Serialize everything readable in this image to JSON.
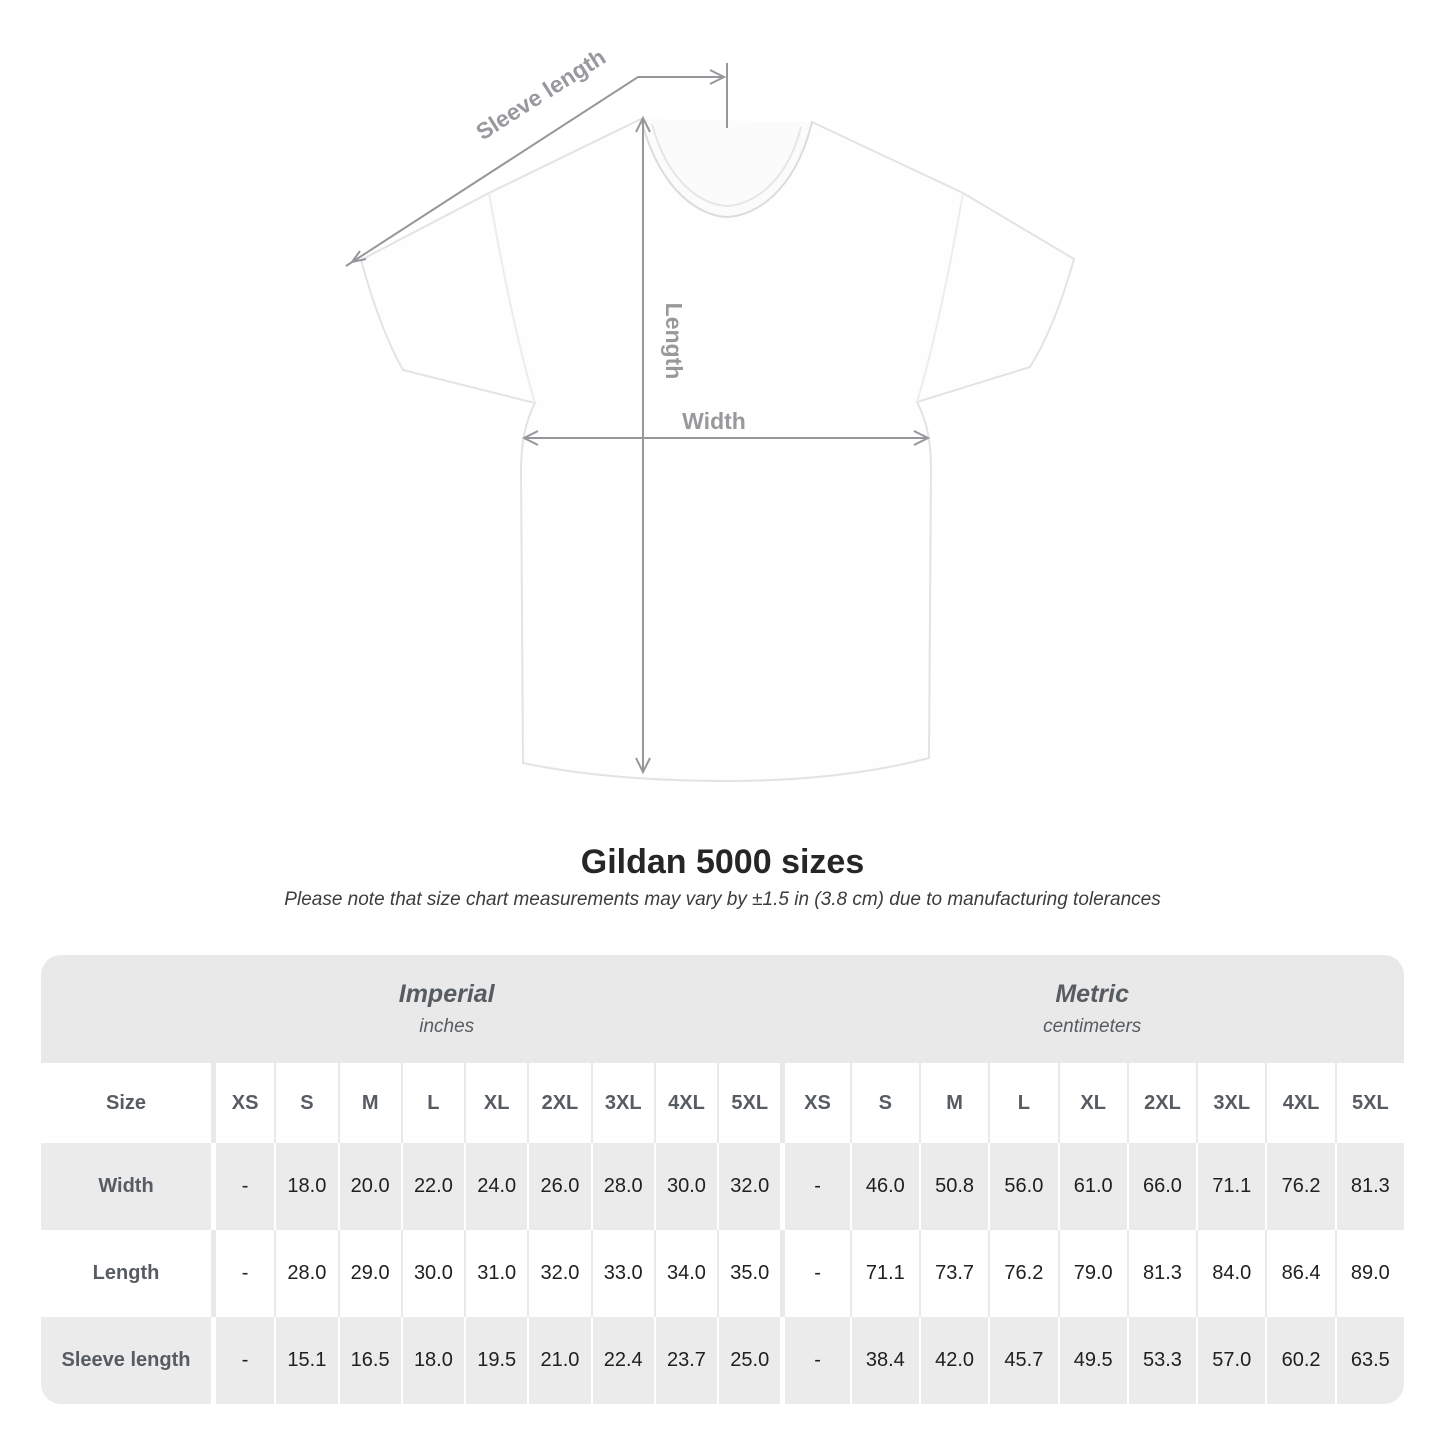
{
  "diagram": {
    "sleeve_length_label": "Sleeve length",
    "length_label": "Length",
    "width_label": "Width"
  },
  "title": "Gildan 5000 sizes",
  "tolerance_note": "Please note that size chart measurements may vary by ±1.5 in (3.8 cm) due to manufacturing tolerances",
  "table": {
    "size_header": "Size",
    "unit_groups": [
      {
        "label": "Imperial",
        "sublabel": "inches"
      },
      {
        "label": "Metric",
        "sublabel": "centimeters"
      }
    ],
    "sizes": [
      "XS",
      "S",
      "M",
      "L",
      "XL",
      "2XL",
      "3XL",
      "4XL",
      "5XL"
    ],
    "rows": [
      {
        "label": "Width",
        "imperial": [
          "-",
          "18.0",
          "20.0",
          "22.0",
          "24.0",
          "26.0",
          "28.0",
          "30.0",
          "32.0"
        ],
        "metric": [
          "-",
          "46.0",
          "50.8",
          "56.0",
          "61.0",
          "66.0",
          "71.1",
          "76.2",
          "81.3"
        ]
      },
      {
        "label": "Length",
        "imperial": [
          "-",
          "28.0",
          "29.0",
          "30.0",
          "31.0",
          "32.0",
          "33.0",
          "34.0",
          "35.0"
        ],
        "metric": [
          "-",
          "71.1",
          "73.7",
          "76.2",
          "79.0",
          "81.3",
          "84.0",
          "86.4",
          "89.0"
        ]
      },
      {
        "label": "Sleeve length",
        "imperial": [
          "-",
          "15.1",
          "16.5",
          "18.0",
          "19.5",
          "21.0",
          "22.4",
          "23.7",
          "25.0"
        ],
        "metric": [
          "-",
          "38.4",
          "42.0",
          "45.7",
          "49.5",
          "53.3",
          "57.0",
          "60.2",
          "63.5"
        ]
      }
    ]
  },
  "colors": {
    "stripe_gray": "#ebebeb",
    "band_gray": "#e9e9e9",
    "header_text": "#565c61",
    "value_text": "#202020",
    "annotation_gray": "#97999c"
  }
}
